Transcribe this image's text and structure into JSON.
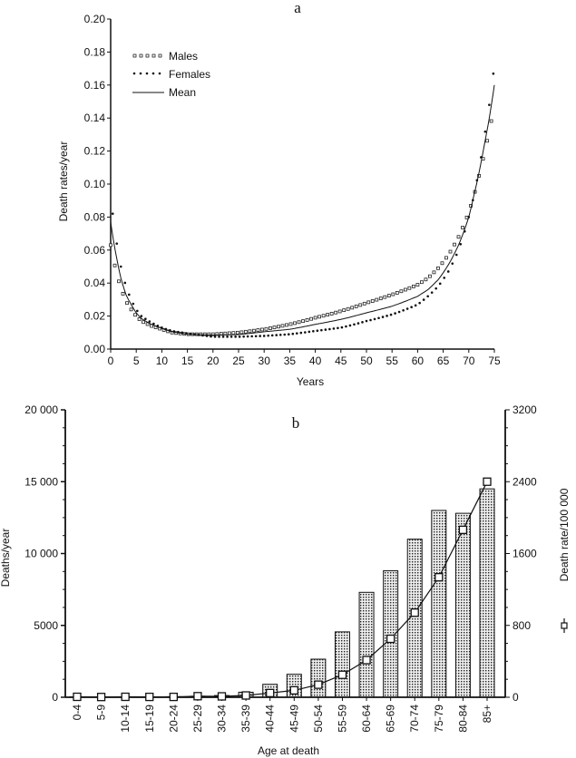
{
  "chart_data": [
    {
      "type": "line",
      "title": "a",
      "xlabel": "Years",
      "ylabel": "Death rates/year",
      "xlim": [
        0,
        75
      ],
      "ylim": [
        0,
        0.2
      ],
      "xticks": [
        0,
        5,
        10,
        15,
        20,
        25,
        30,
        35,
        40,
        45,
        50,
        55,
        60,
        65,
        70,
        75
      ],
      "yticks": [
        "0.00",
        "0.02",
        "0.04",
        "0.06",
        "0.08",
        "0.10",
        "0.12",
        "0.14",
        "0.16",
        "0.18",
        "0.20"
      ],
      "grid": false,
      "legend_position": "top-left",
      "x": [
        0,
        1,
        2,
        3,
        4,
        5,
        6,
        8,
        10,
        12,
        15,
        20,
        25,
        30,
        35,
        40,
        45,
        50,
        55,
        60,
        62,
        64,
        66,
        68,
        70,
        71,
        72,
        73,
        74,
        75
      ],
      "series": [
        {
          "name": "Males",
          "marker": "open-square",
          "values": [
            0.063,
            0.048,
            0.037,
            0.029,
            0.024,
            0.02,
            0.017,
            0.014,
            0.012,
            0.01,
            0.009,
            0.009,
            0.01,
            0.012,
            0.015,
            0.019,
            0.023,
            0.028,
            0.033,
            0.039,
            0.043,
            0.049,
            0.057,
            0.068,
            0.083,
            0.093,
            0.105,
            0.118,
            0.132,
            0.148
          ]
        },
        {
          "name": "Females",
          "marker": "dot",
          "values": [
            0.093,
            0.068,
            0.05,
            0.038,
            0.03,
            0.024,
            0.02,
            0.016,
            0.013,
            0.011,
            0.0095,
            0.0075,
            0.0075,
            0.008,
            0.009,
            0.011,
            0.013,
            0.017,
            0.021,
            0.027,
            0.032,
            0.038,
            0.047,
            0.06,
            0.08,
            0.093,
            0.109,
            0.128,
            0.148,
            0.172
          ]
        },
        {
          "name": "Mean",
          "marker": "solid-line",
          "values": [
            0.077,
            0.058,
            0.043,
            0.033,
            0.027,
            0.022,
            0.0185,
            0.015,
            0.0125,
            0.0105,
            0.009,
            0.0085,
            0.0088,
            0.0105,
            0.012,
            0.015,
            0.018,
            0.022,
            0.026,
            0.032,
            0.036,
            0.042,
            0.051,
            0.063,
            0.08,
            0.093,
            0.107,
            0.123,
            0.14,
            0.16
          ]
        }
      ]
    },
    {
      "type": "bar",
      "title": "b",
      "xlabel": "Age at death",
      "ylabel": "Deaths/year",
      "y2label": "Death rate/100 000",
      "ylim": [
        0,
        20000
      ],
      "y2lim": [
        0,
        3200
      ],
      "yticks": [
        "0",
        "5000",
        "10 000",
        "15 000",
        "20 000"
      ],
      "y2ticks": [
        "0",
        "800",
        "1600",
        "2400",
        "3200"
      ],
      "grid": false,
      "categories": [
        "0-4",
        "5-9",
        "10-14",
        "15-19",
        "20-24",
        "25-29",
        "30-34",
        "35-39",
        "40-44",
        "45-49",
        "50-54",
        "55-59",
        "60-64",
        "65-69",
        "70-74",
        "75-79",
        "80-84",
        "85+"
      ],
      "series": [
        {
          "type": "bar",
          "axis": "left",
          "values": [
            30,
            20,
            30,
            30,
            40,
            70,
            120,
            350,
            900,
            1600,
            2650,
            4550,
            7300,
            8800,
            11000,
            13000,
            12800,
            14500
          ]
        },
        {
          "type": "line",
          "axis": "right",
          "name": "Death rate/100 000",
          "marker": "open-square",
          "values": [
            5,
            3,
            5,
            4,
            4,
            12,
            10,
            20,
            47,
            77,
            140,
            250,
            414,
            651,
            942,
            1336,
            1864,
            2400
          ]
        }
      ]
    }
  ]
}
